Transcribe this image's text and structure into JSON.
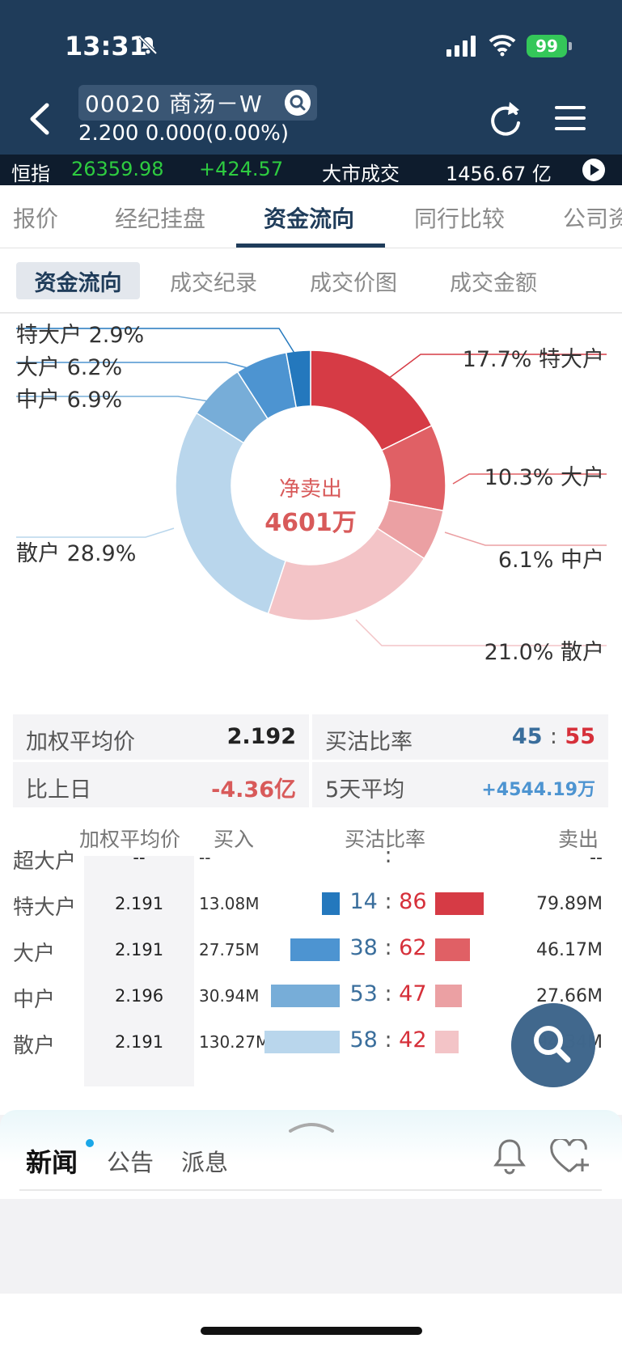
{
  "status_bar": {
    "time": "13:31",
    "battery": "99"
  },
  "header": {
    "stock_title": "00020 商汤－W",
    "price_line": "2.200 0.000(0.00%)"
  },
  "ticker": {
    "index_name": "恒指",
    "index_value": "26359.98",
    "index_change": "+424.57",
    "turnover_label": "大市成交",
    "turnover_value": "1456.67 亿"
  },
  "tabs": [
    "报价",
    "经纪挂盘",
    "资金流向",
    "同行比较",
    "公司资"
  ],
  "subtabs": [
    "资金流向",
    "成交纪录",
    "成交价图",
    "成交金额"
  ],
  "donut": {
    "center_title": "净卖出",
    "center_value": "4601万",
    "left_labels": [
      "特大户 2.9%",
      "大户 6.2%",
      "中户 6.9%",
      "散户 28.9%"
    ],
    "right_labels": [
      "17.7% 特大户",
      "10.3% 大户",
      "6.1% 中户",
      "21.0% 散户"
    ]
  },
  "chart_data": {
    "type": "pie",
    "categories": [
      "特大户",
      "大户",
      "中户",
      "散户",
      "散户",
      "中户",
      "大户",
      "特大户"
    ],
    "values": [
      17.7,
      10.3,
      6.1,
      21.0,
      28.9,
      6.9,
      6.2,
      2.9
    ],
    "colors": [
      "#d63b45",
      "#e06065",
      "#eba0a3",
      "#f3c4c7",
      "#b9d6ec",
      "#77add8",
      "#4d94d1",
      "#2478bd"
    ]
  },
  "stats": {
    "weighted_avg_label": "加权平均价",
    "weighted_avg_value": "2.192",
    "ratio_label": "买沽比率",
    "ratio_buy": "45",
    "ratio_colon": ":",
    "ratio_sell": "55",
    "prev_label": "比上日",
    "prev_value": "-4.36亿",
    "avg5_label": "5天平均",
    "avg5_value": "+4544.19万"
  },
  "table": {
    "headers": [
      "加权平均价",
      "买入",
      "买沽比率",
      "卖出"
    ],
    "rows": [
      {
        "name": "超大户",
        "avg": "--",
        "buy": "--",
        "ratio_buy": "",
        "colon": ":",
        "ratio_sell": "",
        "sell": "--",
        "buy_pct": 0,
        "sell_pct": 0
      },
      {
        "name": "特大户",
        "avg": "2.191",
        "buy": "13.08M",
        "ratio_buy": "14",
        "colon": ":",
        "ratio_sell": "86",
        "sell": "79.89M",
        "buy_pct": 14,
        "sell_pct": 86
      },
      {
        "name": "大户",
        "avg": "2.191",
        "buy": "27.75M",
        "ratio_buy": "38",
        "colon": ":",
        "ratio_sell": "62",
        "sell": "46.17M",
        "buy_pct": 38,
        "sell_pct": 62
      },
      {
        "name": "中户",
        "avg": "2.196",
        "buy": "30.94M",
        "ratio_buy": "53",
        "colon": ":",
        "ratio_sell": "47",
        "sell": "27.66M",
        "buy_pct": 53,
        "sell_pct": 47
      },
      {
        "name": "散户",
        "avg": "2.191",
        "buy": "130.27M",
        "ratio_buy": "58",
        "colon": ":",
        "ratio_sell": "42",
        "sell": "94.34M",
        "buy_pct": 58,
        "sell_pct": 42
      }
    ]
  },
  "news": {
    "tabs": [
      "新闻",
      "公告",
      "派息"
    ]
  }
}
